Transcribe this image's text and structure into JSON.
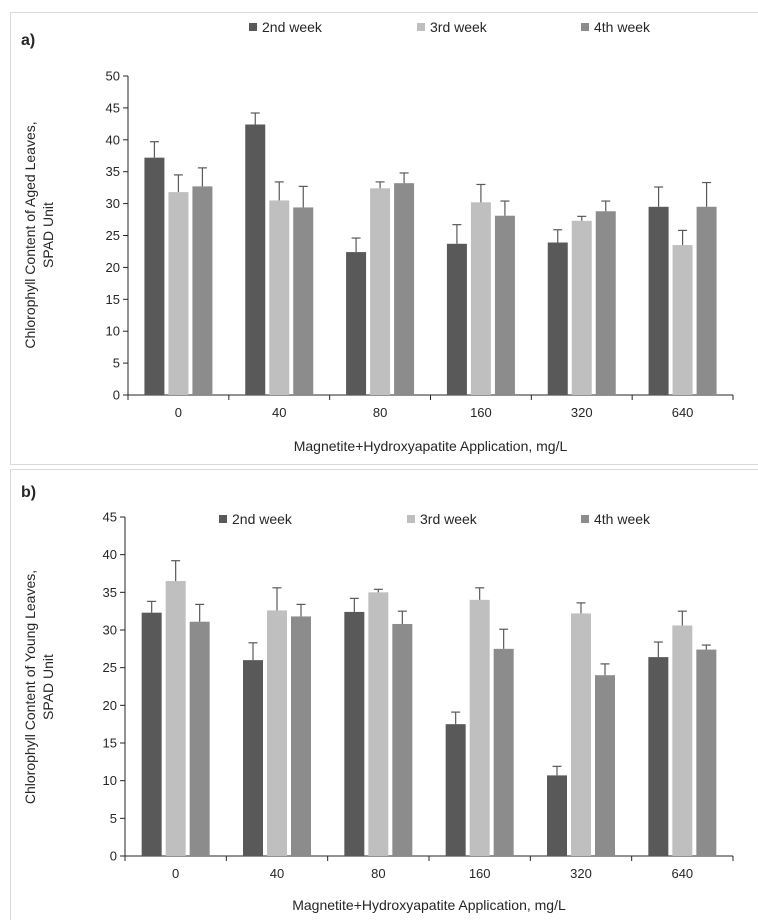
{
  "colors": {
    "series": [
      "#595959",
      "#bfbfbf",
      "#8c8c8c"
    ],
    "axis": "#262626",
    "error_bar": "#595959"
  },
  "chart_data": [
    {
      "type": "bar",
      "panel_label": "a)",
      "title": "",
      "xlabel": "Magnetite+Hydroxyapatite Application, mg/L",
      "ylabel": [
        "Chlorophyll Content of Aged Leaves,",
        "SPAD Unit"
      ],
      "ylim": [
        0,
        50
      ],
      "ytick_step": 5,
      "grid": false,
      "legend": "top",
      "error_bars": true,
      "categories": [
        "0",
        "40",
        "80",
        "160",
        "320",
        "640"
      ],
      "series": [
        {
          "name": "2nd week",
          "values": [
            37.2,
            42.4,
            22.4,
            23.7,
            23.9,
            29.5
          ],
          "errors": [
            2.5,
            1.8,
            2.2,
            3.0,
            2.0,
            3.1
          ]
        },
        {
          "name": "3rd week",
          "values": [
            31.8,
            30.5,
            32.4,
            30.2,
            27.3,
            23.5
          ],
          "errors": [
            2.7,
            2.9,
            1.0,
            2.8,
            0.7,
            2.3
          ]
        },
        {
          "name": "4th week",
          "values": [
            32.7,
            29.4,
            33.2,
            28.1,
            28.8,
            29.5
          ],
          "errors": [
            2.9,
            3.3,
            1.6,
            2.3,
            1.6,
            3.8
          ]
        }
      ]
    },
    {
      "type": "bar",
      "panel_label": "b)",
      "title": "",
      "xlabel": "Magnetite+Hydroxyapatite Application, mg/L",
      "ylabel": [
        "Chlorophyll Content of Young Leaves,",
        "SPAD Unit"
      ],
      "ylim": [
        0,
        45
      ],
      "ytick_step": 5,
      "grid": false,
      "legend": "top",
      "error_bars": true,
      "categories": [
        "0",
        "40",
        "80",
        "160",
        "320",
        "640"
      ],
      "series": [
        {
          "name": "2nd week",
          "values": [
            32.3,
            26.0,
            32.4,
            17.5,
            10.7,
            26.4
          ],
          "errors": [
            1.5,
            2.3,
            1.8,
            1.6,
            1.2,
            2.0
          ]
        },
        {
          "name": "3rd week",
          "values": [
            36.5,
            32.6,
            35.0,
            34.0,
            32.2,
            30.6
          ],
          "errors": [
            2.7,
            3.0,
            0.4,
            1.6,
            1.4,
            1.9
          ]
        },
        {
          "name": "4th week",
          "values": [
            31.1,
            31.8,
            30.8,
            27.5,
            24.0,
            27.4
          ],
          "errors": [
            2.3,
            1.6,
            1.7,
            2.6,
            1.5,
            0.6
          ]
        }
      ]
    }
  ]
}
